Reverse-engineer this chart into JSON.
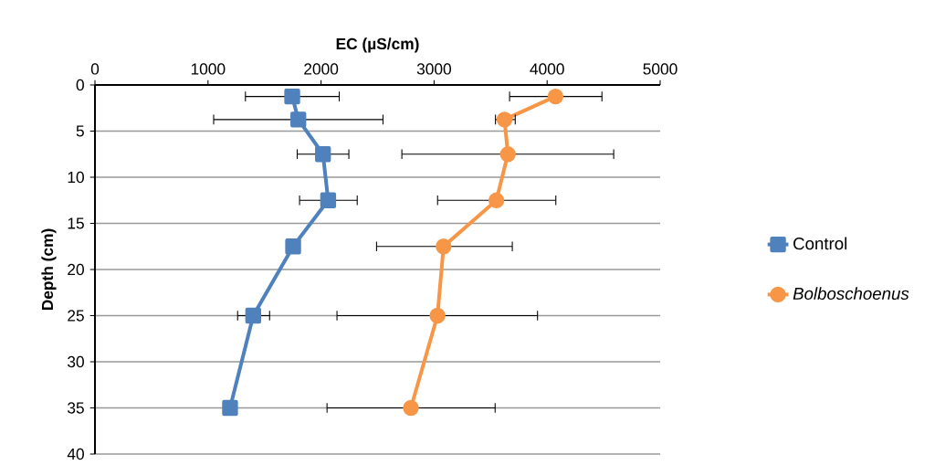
{
  "chart_data": {
    "type": "line",
    "xlabel": "EC (µS/cm)",
    "ylabel": "Depth (cm)",
    "xlim": [
      0,
      5000
    ],
    "xticks": [
      0,
      1000,
      2000,
      3000,
      4000,
      5000
    ],
    "ylim": [
      40,
      0
    ],
    "yticks": [
      0,
      5,
      10,
      15,
      20,
      25,
      30,
      35,
      40
    ],
    "grid": "y",
    "legend": "right",
    "line_style": "solid",
    "series": [
      {
        "name": "Control",
        "color": "#4f81bd",
        "marker": "square",
        "x": [
          1745,
          1799,
          2017,
          2063,
          1753,
          1400,
          1195
        ],
        "values": [
          1.25,
          3.75,
          7.5,
          12.5,
          17.5,
          25,
          35
        ],
        "xerrors": [
          [
            1331,
            2161
          ],
          [
            1050,
            2548
          ],
          [
            1789,
            2246
          ],
          [
            1810,
            2320
          ],
          null,
          [
            1262,
            1545
          ],
          null
        ]
      },
      {
        "name": "*Bolboschoenus*",
        "color": "#f79646",
        "marker": "circle",
        "x": [
          4074,
          3623,
          3653,
          3551,
          3084,
          3030,
          2795
        ],
        "values": [
          1.25,
          3.75,
          7.5,
          12.5,
          17.5,
          25,
          35
        ],
        "xerrors": [
          [
            3668,
            4485
          ],
          [
            3543,
            3718
          ],
          [
            2715,
            4589
          ],
          [
            3031,
            4077
          ],
          [
            2491,
            3692
          ],
          [
            2141,
            3915
          ],
          [
            2053,
            3540
          ]
        ]
      }
    ]
  }
}
